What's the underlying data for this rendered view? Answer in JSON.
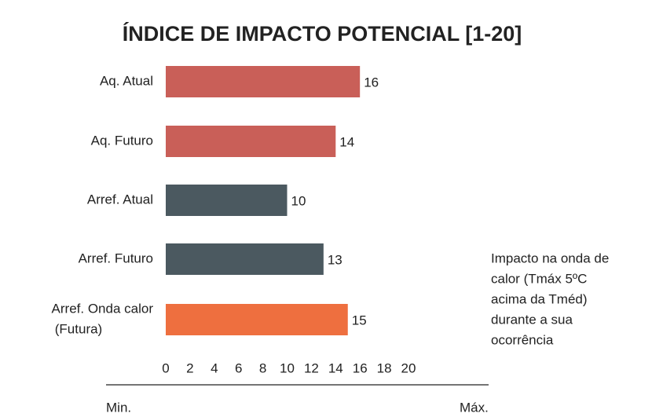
{
  "chart_data": {
    "type": "barh",
    "title": "ÍNDICE DE IMPACTO POTENCIAL [1-20]",
    "categories": [
      [
        "Aq. Atual"
      ],
      [
        "Aq. Futuro"
      ],
      [
        "Arref. Atual"
      ],
      [
        "Arref. Futuro"
      ],
      [
        "Arref. Onda calor",
        "(Futura)"
      ]
    ],
    "values": [
      16,
      14,
      10,
      13,
      15
    ],
    "colors": [
      "#c95f58",
      "#c95f58",
      "#4b5960",
      "#4b5960",
      "#ee6f3f"
    ],
    "xlim": [
      0,
      20
    ],
    "xticks": [
      0,
      2,
      4,
      6,
      8,
      10,
      12,
      14,
      16,
      18,
      20
    ],
    "grid": false,
    "axis_min_label": "Min.",
    "axis_max_label": "Máx.",
    "annotation": [
      "Impacto na onda de",
      "calor (Tmáx 5ºC",
      "acima da Tméd)",
      "durante a sua",
      "ocorrência"
    ]
  }
}
